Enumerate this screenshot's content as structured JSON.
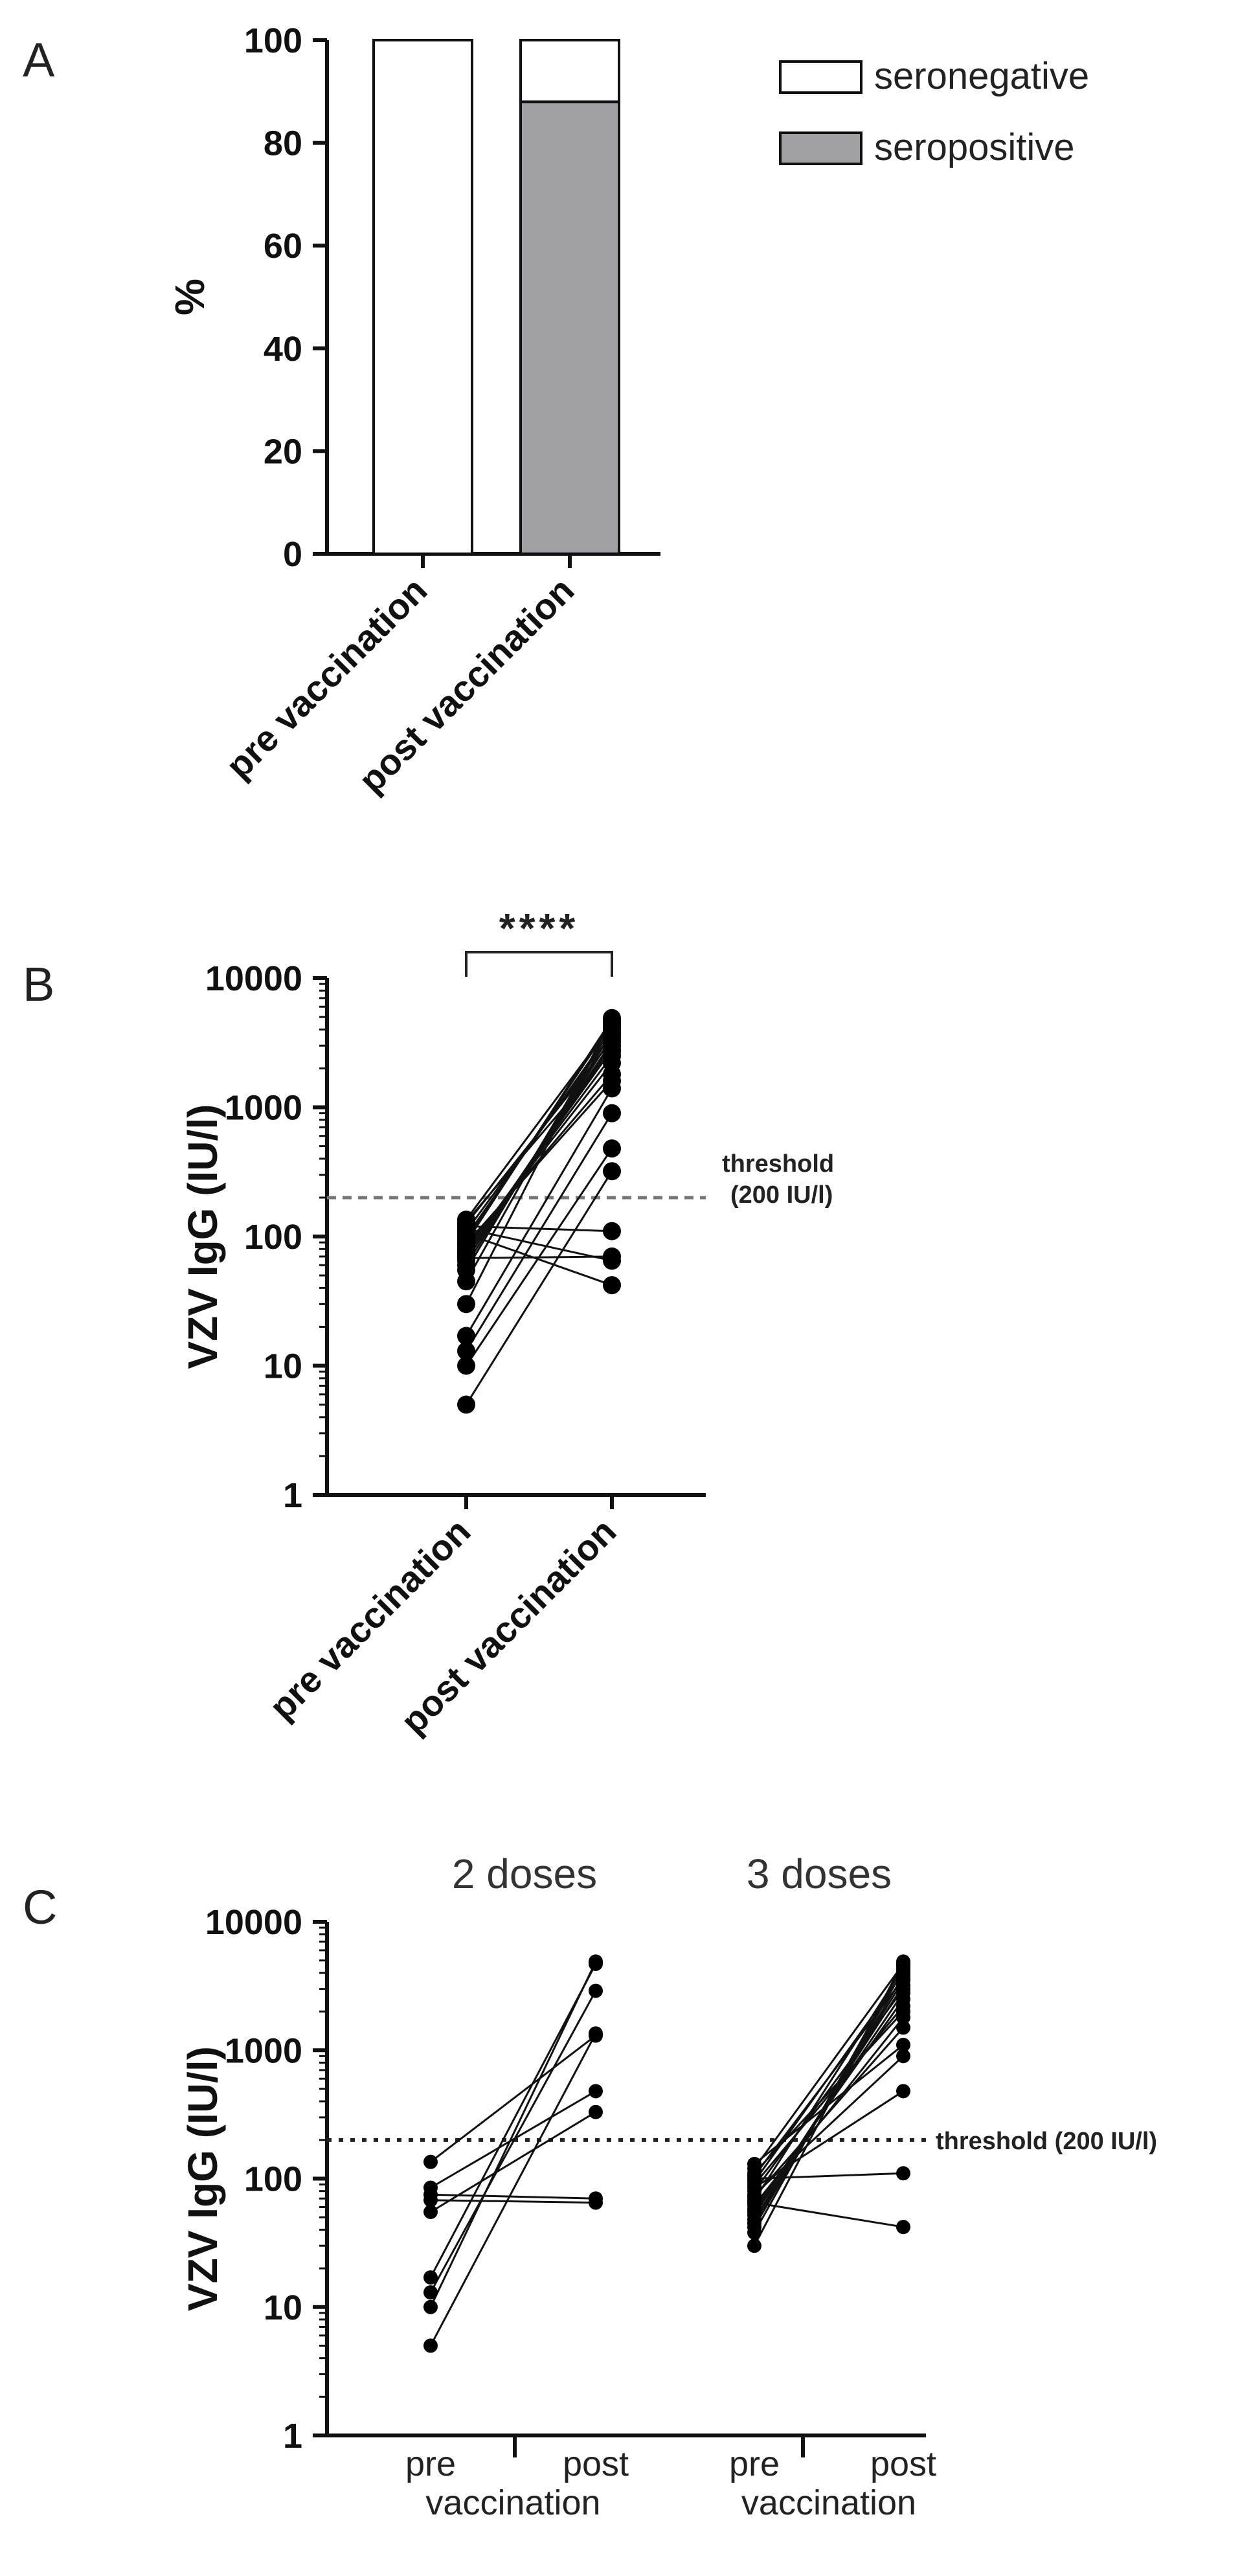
{
  "chart_data": [
    {
      "panel": "A",
      "type": "bar",
      "ylabel": "%",
      "ylim": [
        0,
        100
      ],
      "yticks": [
        "0",
        "20",
        "40",
        "60",
        "80",
        "100"
      ],
      "categories": [
        "pre vaccination",
        "post vaccination"
      ],
      "stacked": true,
      "series": [
        {
          "name": "seropositive",
          "values": [
            0,
            88
          ],
          "color": "#a0a0a4"
        },
        {
          "name": "seronegative",
          "values": [
            100,
            12
          ],
          "color": "#ffffff"
        }
      ],
      "legend_position": "top-right"
    },
    {
      "panel": "B",
      "type": "scatter",
      "paired": true,
      "ylabel": "VZV IgG (IU/l)",
      "yscale": "log",
      "ylim": [
        1,
        10000
      ],
      "yticks": [
        "1",
        "10",
        "100",
        "1000",
        "10000"
      ],
      "categories": [
        "pre vaccination",
        "post vaccination"
      ],
      "significance": "****",
      "threshold": {
        "value": 200,
        "label_line1": "threshold",
        "label_line2": "(200 IU/l)"
      },
      "pairs": [
        [
          5,
          320
        ],
        [
          10,
          480
        ],
        [
          13,
          900
        ],
        [
          17,
          1400
        ],
        [
          30,
          4900
        ],
        [
          45,
          4600
        ],
        [
          55,
          4200
        ],
        [
          60,
          3800
        ],
        [
          65,
          3500
        ],
        [
          68,
          70
        ],
        [
          70,
          3200
        ],
        [
          72,
          3000
        ],
        [
          75,
          2800
        ],
        [
          78,
          2500
        ],
        [
          80,
          2200
        ],
        [
          85,
          1800
        ],
        [
          88,
          1600
        ],
        [
          90,
          4800
        ],
        [
          95,
          4500
        ],
        [
          100,
          4000
        ],
        [
          105,
          42
        ],
        [
          110,
          3700
        ],
        [
          115,
          65
        ],
        [
          120,
          110
        ],
        [
          125,
          3300
        ],
        [
          130,
          2700
        ],
        [
          135,
          4400
        ]
      ]
    },
    {
      "panel": "C",
      "type": "scatter",
      "paired": true,
      "ylabel": "VZV IgG (IU/l)",
      "yscale": "log",
      "ylim": [
        1,
        10000
      ],
      "yticks": [
        "1",
        "10",
        "100",
        "1000",
        "10000"
      ],
      "threshold": {
        "value": 200,
        "label": "threshold (200 IU/l)"
      },
      "groups": [
        {
          "title": "2 doses",
          "categories": [
            "pre",
            "post"
          ],
          "pairs": [
            [
              5,
              1350
            ],
            [
              10,
              4900
            ],
            [
              13,
              2900
            ],
            [
              17,
              4700
            ],
            [
              55,
              330
            ],
            [
              68,
              65
            ],
            [
              75,
              70
            ],
            [
              85,
              480
            ],
            [
              135,
              1300
            ]
          ]
        },
        {
          "title": "3 doses",
          "categories": [
            "pre",
            "post"
          ],
          "pairs": [
            [
              30,
              4900
            ],
            [
              38,
              4600
            ],
            [
              42,
              4200
            ],
            [
              45,
              3800
            ],
            [
              48,
              3500
            ],
            [
              52,
              3200
            ],
            [
              55,
              2800
            ],
            [
              58,
              2500
            ],
            [
              62,
              1800
            ],
            [
              65,
              42
            ],
            [
              68,
              4400
            ],
            [
              72,
              1500
            ],
            [
              75,
              900
            ],
            [
              80,
              3000
            ],
            [
              85,
              480
            ],
            [
              90,
              2200
            ],
            [
              95,
              4000
            ],
            [
              100,
              110
            ],
            [
              105,
              3600
            ],
            [
              110,
              2000
            ],
            [
              120,
              4700
            ],
            [
              130,
              1100
            ]
          ]
        }
      ],
      "shared_xlabel": "vaccination"
    }
  ]
}
